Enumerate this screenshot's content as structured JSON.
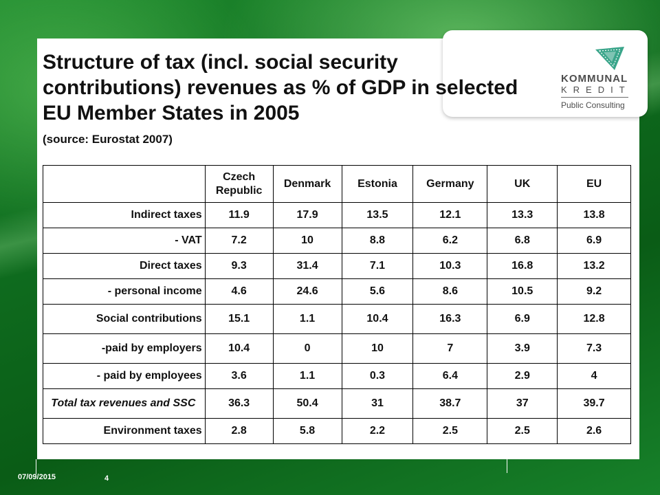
{
  "slide": {
    "title": "Structure of tax (incl. social security contributions) revenues as % of GDP in selected EU Member States in 2005",
    "source": "(source: Eurostat 2007)"
  },
  "logo": {
    "line1": "KOMMUNAL",
    "line2": "KREDIT",
    "line3": "Public Consulting",
    "color": "#3aa58a"
  },
  "table": {
    "headers": [
      "",
      "Czech Republic",
      "Denmark",
      "Estonia",
      "Germany",
      "UK",
      "EU"
    ],
    "rows": [
      {
        "label": "Indirect taxes",
        "values": [
          "11.9",
          "17.9",
          "13.5",
          "12.1",
          "13.3",
          "13.8"
        ]
      },
      {
        "label": "- VAT",
        "values": [
          "7.2",
          "10",
          "8.8",
          "6.2",
          "6.8",
          "6.9"
        ]
      },
      {
        "label": "Direct taxes",
        "values": [
          "9.3",
          "31.4",
          "7.1",
          "10.3",
          "16.8",
          "13.2"
        ]
      },
      {
        "label": "- personal income",
        "values": [
          "4.6",
          "24.6",
          "5.6",
          "8.6",
          "10.5",
          "9.2"
        ]
      },
      {
        "label": "Social contributions",
        "values": [
          "15.1",
          "1.1",
          "10.4",
          "16.3",
          "6.9",
          "12.8"
        ]
      },
      {
        "label": "-paid by employers",
        "values": [
          "10.4",
          "0",
          "10",
          "7",
          "3.9",
          "7.3"
        ]
      },
      {
        "label": "- paid by employees",
        "values": [
          "3.6",
          "1.1",
          "0.3",
          "6.4",
          "2.9",
          "4"
        ]
      },
      {
        "label": "Total tax revenues and SSC",
        "values": [
          "36.3",
          "50.4",
          "31",
          "38.7",
          "37",
          "39.7"
        ]
      },
      {
        "label": "Environment taxes",
        "values": [
          "2.8",
          "5.8",
          "2.2",
          "2.5",
          "2.5",
          "2.6"
        ]
      }
    ]
  },
  "footer": {
    "date": "07/09/2015",
    "page": "4"
  }
}
